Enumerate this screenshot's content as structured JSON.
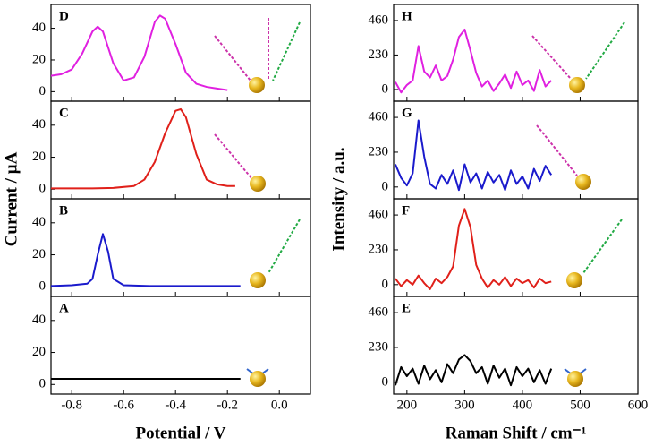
{
  "chart_data": [
    {
      "type": "line",
      "label": "D",
      "color": "#e020e0",
      "ylim": [
        -6,
        55
      ],
      "yticks": [
        0,
        20,
        40
      ],
      "x": [
        -0.88,
        -0.84,
        -0.8,
        -0.76,
        -0.72,
        -0.7,
        -0.68,
        -0.64,
        -0.6,
        -0.56,
        -0.52,
        -0.48,
        -0.46,
        -0.44,
        -0.4,
        -0.36,
        -0.32,
        -0.28,
        -0.24,
        -0.2
      ],
      "values": [
        10,
        11,
        14,
        24,
        38,
        41,
        38,
        18,
        7,
        9,
        22,
        44,
        48,
        46,
        30,
        12,
        5,
        3,
        2,
        1
      ]
    },
    {
      "type": "line",
      "label": "C",
      "color": "#e0201a",
      "ylim": [
        -6,
        55
      ],
      "yticks": [
        0,
        20,
        40
      ],
      "x": [
        -0.88,
        -0.8,
        -0.72,
        -0.64,
        -0.56,
        -0.52,
        -0.48,
        -0.44,
        -0.4,
        -0.38,
        -0.36,
        -0.32,
        -0.28,
        -0.24,
        -0.2,
        -0.17
      ],
      "values": [
        0.5,
        0.5,
        0.5,
        0.8,
        2,
        6,
        17,
        35,
        49,
        50,
        45,
        22,
        6,
        3,
        2,
        2
      ]
    },
    {
      "type": "line",
      "label": "B",
      "color": "#1a1acc",
      "ylim": [
        -6,
        55
      ],
      "yticks": [
        0,
        20,
        40
      ],
      "x": [
        -0.88,
        -0.8,
        -0.74,
        -0.72,
        -0.7,
        -0.68,
        -0.66,
        -0.64,
        -0.6,
        -0.5,
        -0.4,
        -0.3,
        -0.2,
        -0.15
      ],
      "values": [
        0.5,
        1,
        2,
        5,
        20,
        33,
        22,
        5,
        1,
        0.5,
        0.5,
        0.5,
        0.5,
        0.5
      ]
    },
    {
      "type": "line",
      "label": "A",
      "color": "#000000",
      "ylim": [
        -6,
        55
      ],
      "yticks": [
        0,
        20,
        40
      ],
      "xlim": [
        -0.88,
        0.12
      ],
      "xticks": [
        -0.8,
        -0.6,
        -0.4,
        -0.2,
        {
          "value": 0,
          "label": "0.0"
        }
      ],
      "x_label": "Potential / V",
      "y_label": "Current / µA",
      "x": [
        -0.88,
        -0.15
      ],
      "values": [
        3.5,
        3.5
      ]
    },
    {
      "type": "line",
      "label": "H",
      "color": "#e020e0",
      "ylim": [
        -78,
        567
      ],
      "yticks": [
        0,
        230,
        460
      ],
      "x": [
        180,
        190,
        200,
        210,
        220,
        230,
        240,
        250,
        260,
        270,
        280,
        290,
        300,
        310,
        320,
        330,
        340,
        350,
        360,
        370,
        380,
        390,
        400,
        410,
        420,
        430,
        440,
        450
      ],
      "values": [
        50,
        -20,
        30,
        60,
        290,
        120,
        80,
        160,
        60,
        90,
        200,
        350,
        400,
        260,
        110,
        20,
        60,
        -10,
        40,
        100,
        10,
        120,
        30,
        60,
        -10,
        130,
        20,
        60
      ]
    },
    {
      "type": "line",
      "label": "G",
      "color": "#1a1acc",
      "ylim": [
        -78,
        567
      ],
      "yticks": [
        0,
        230,
        460
      ],
      "x": [
        180,
        190,
        200,
        210,
        220,
        230,
        240,
        250,
        260,
        270,
        280,
        290,
        300,
        310,
        320,
        330,
        340,
        350,
        360,
        370,
        380,
        390,
        400,
        410,
        420,
        430,
        440,
        450
      ],
      "values": [
        150,
        60,
        10,
        90,
        440,
        200,
        20,
        -10,
        80,
        20,
        110,
        -20,
        150,
        30,
        90,
        -10,
        100,
        30,
        80,
        -20,
        110,
        20,
        70,
        -10,
        120,
        40,
        140,
        80
      ]
    },
    {
      "type": "line",
      "label": "F",
      "color": "#e0201a",
      "ylim": [
        -78,
        567
      ],
      "yticks": [
        0,
        230,
        460
      ],
      "x": [
        180,
        190,
        200,
        210,
        220,
        230,
        240,
        250,
        260,
        270,
        280,
        290,
        300,
        310,
        320,
        330,
        340,
        350,
        360,
        370,
        380,
        390,
        400,
        410,
        420,
        430,
        440,
        450
      ],
      "values": [
        40,
        -10,
        30,
        0,
        60,
        10,
        -30,
        40,
        10,
        50,
        120,
        390,
        500,
        380,
        130,
        40,
        -20,
        30,
        0,
        50,
        -10,
        40,
        10,
        30,
        -20,
        40,
        10,
        20
      ]
    },
    {
      "type": "line",
      "label": "E",
      "color": "#000000",
      "ylim": [
        -78,
        567
      ],
      "yticks": [
        0,
        230,
        460
      ],
      "xlim": [
        177,
        600
      ],
      "xticks": [
        200,
        300,
        400,
        500,
        600
      ],
      "x_label": "Raman Shift / cm⁻¹",
      "y_label": "Intensity / a.u.",
      "x": [
        180,
        190,
        200,
        210,
        220,
        230,
        240,
        250,
        260,
        270,
        280,
        290,
        300,
        310,
        320,
        330,
        340,
        350,
        360,
        370,
        380,
        390,
        400,
        410,
        420,
        430,
        440,
        450
      ],
      "values": [
        -20,
        100,
        40,
        90,
        -10,
        110,
        20,
        80,
        0,
        120,
        60,
        150,
        180,
        140,
        60,
        100,
        -10,
        110,
        30,
        90,
        -20,
        100,
        40,
        90,
        0,
        80,
        -10,
        90
      ]
    }
  ]
}
